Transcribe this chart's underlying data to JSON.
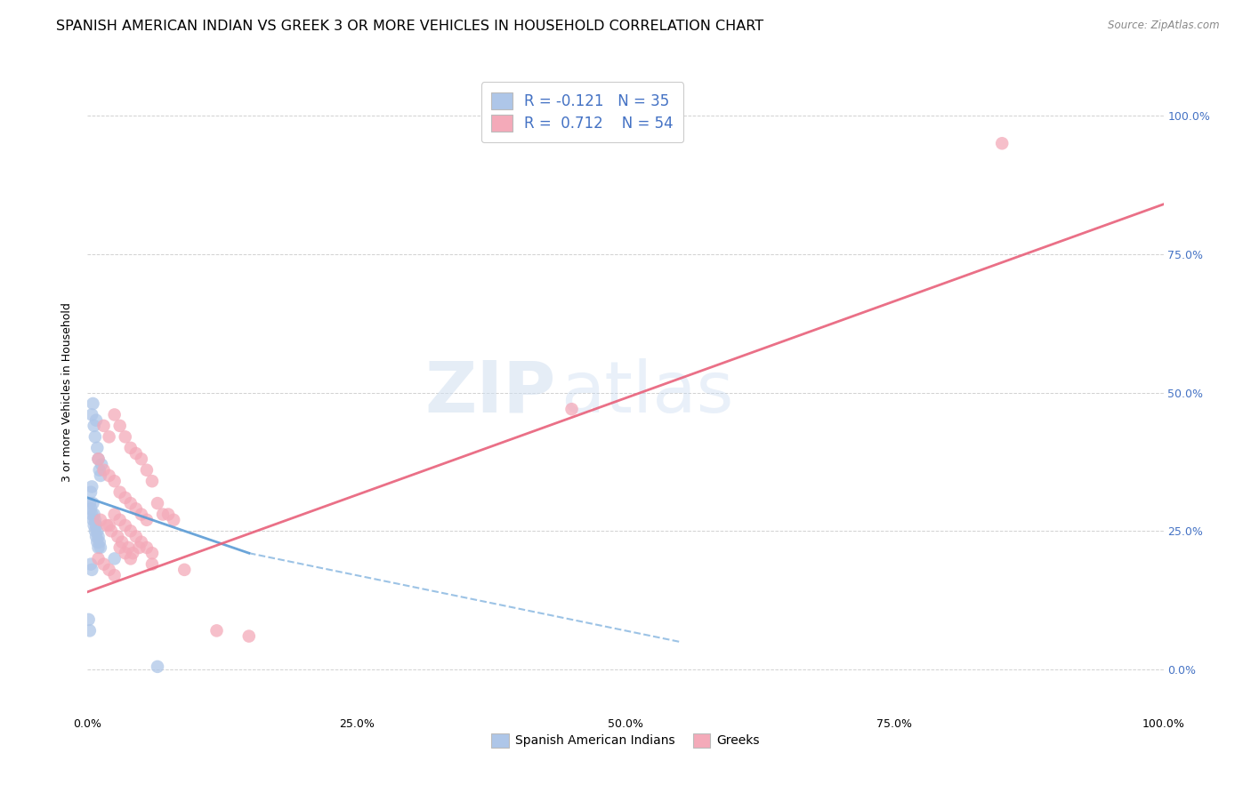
{
  "title": "SPANISH AMERICAN INDIAN VS GREEK 3 OR MORE VEHICLES IN HOUSEHOLD CORRELATION CHART",
  "source": "Source: ZipAtlas.com",
  "ylabel": "3 or more Vehicles in Household",
  "watermark_zip": "ZIP",
  "watermark_atlas": "atlas",
  "legend_label_blue": "Spanish American Indians",
  "legend_label_pink": "Greeks",
  "R_blue": -0.121,
  "N_blue": 35,
  "R_pink": 0.712,
  "N_pink": 54,
  "blue_color": "#aec6e8",
  "blue_line_color": "#5b9bd5",
  "pink_color": "#f4aab9",
  "pink_line_color": "#e8607a",
  "blue_scatter_x": [
    0.4,
    0.5,
    0.6,
    0.7,
    0.8,
    0.9,
    1.0,
    1.1,
    1.2,
    1.3,
    0.3,
    0.4,
    0.5,
    0.6,
    0.7,
    0.8,
    0.9,
    1.0,
    1.1,
    1.2,
    0.2,
    0.3,
    0.4,
    0.5,
    0.6,
    0.7,
    0.8,
    0.9,
    1.0,
    2.5,
    0.1,
    0.2,
    6.5,
    0.3,
    0.4
  ],
  "blue_scatter_y": [
    46,
    48,
    44,
    42,
    45,
    40,
    38,
    36,
    35,
    37,
    32,
    33,
    30,
    28,
    27,
    26,
    25,
    24,
    23,
    22,
    30,
    29,
    28,
    27,
    26,
    25,
    24,
    23,
    22,
    20,
    9,
    7,
    0.5,
    19,
    18
  ],
  "pink_scatter_x": [
    1.5,
    2.0,
    2.5,
    3.0,
    3.5,
    4.0,
    4.5,
    5.0,
    5.5,
    6.0,
    1.0,
    1.5,
    2.0,
    2.5,
    3.0,
    3.5,
    4.0,
    4.5,
    5.0,
    5.5,
    2.0,
    2.5,
    3.0,
    3.5,
    4.0,
    4.5,
    5.0,
    5.5,
    6.0,
    6.5,
    1.2,
    1.8,
    2.2,
    2.8,
    3.2,
    3.8,
    4.2,
    4.8,
    7.0,
    8.0,
    1.0,
    1.5,
    2.0,
    2.5,
    3.0,
    3.5,
    4.0,
    6.0,
    7.5,
    9.0,
    45.0,
    85.0,
    12.0,
    15.0
  ],
  "pink_scatter_y": [
    44,
    42,
    46,
    44,
    42,
    40,
    39,
    38,
    36,
    34,
    38,
    36,
    35,
    34,
    32,
    31,
    30,
    29,
    28,
    27,
    26,
    28,
    27,
    26,
    25,
    24,
    23,
    22,
    21,
    30,
    27,
    26,
    25,
    24,
    23,
    22,
    21,
    22,
    28,
    27,
    20,
    19,
    18,
    17,
    22,
    21,
    20,
    19,
    28,
    18,
    47,
    95,
    7,
    6
  ],
  "xlim": [
    0,
    100
  ],
  "ylim": [
    -8,
    108
  ],
  "xticks": [
    0,
    25,
    50,
    75,
    100
  ],
  "yticks_right": [
    0,
    25,
    50,
    75,
    100
  ],
  "grid_color": "#cccccc",
  "background_color": "#ffffff",
  "title_fontsize": 11.5,
  "axis_label_fontsize": 9,
  "tick_fontsize": 9,
  "blue_line_start_x": 0,
  "blue_line_start_y": 31,
  "blue_line_end_x": 15,
  "blue_line_end_y": 21,
  "blue_dash_end_x": 55,
  "blue_dash_end_y": 5,
  "pink_line_start_x": 0,
  "pink_line_start_y": 14,
  "pink_line_end_x": 100,
  "pink_line_end_y": 84
}
